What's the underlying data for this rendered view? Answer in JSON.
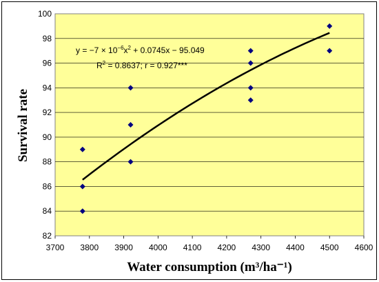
{
  "colors": {
    "plot_background": "#FFFF99",
    "marker": "#000080",
    "trendline": "#000000",
    "gridline": "#000000"
  },
  "chart_data": {
    "type": "scatter",
    "xlabel": "Water consumption (m³/ha⁻¹)",
    "ylabel": "Survival rate",
    "xlim": [
      3700,
      4600
    ],
    "ylim": [
      82,
      100
    ],
    "x_ticks": [
      "3700",
      "3800",
      "3900",
      "4000",
      "4100",
      "4200",
      "4300",
      "4400",
      "4500",
      "4600"
    ],
    "y_ticks": [
      "82",
      "84",
      "86",
      "88",
      "90",
      "92",
      "94",
      "96",
      "98",
      "100"
    ],
    "grid": "horizontal",
    "legend": "none",
    "marker": "diamond",
    "points": [
      {
        "x": 3780,
        "y": 84
      },
      {
        "x": 3780,
        "y": 86
      },
      {
        "x": 3780,
        "y": 89
      },
      {
        "x": 3920,
        "y": 88
      },
      {
        "x": 3920,
        "y": 91
      },
      {
        "x": 3920,
        "y": 94
      },
      {
        "x": 4270,
        "y": 93
      },
      {
        "x": 4270,
        "y": 94
      },
      {
        "x": 4270,
        "y": 96
      },
      {
        "x": 4270,
        "y": 97
      },
      {
        "x": 4500,
        "y": 97
      },
      {
        "x": 4500,
        "y": 99
      }
    ],
    "trendline": {
      "type": "polynomial",
      "coefficients": {
        "a": -7e-06,
        "b": 0.0745,
        "c": -95.049
      },
      "x_range": [
        3780,
        4500
      ]
    },
    "annotation": {
      "equation_prefix": "y = −7 × 10",
      "equation_exponent": "−6",
      "equation_mid": "x",
      "equation_power": "2",
      "equation_suffix": " + 0.0745x − 95.049",
      "r2_label": "R",
      "r2_power": "2",
      "r2_suffix": "  = 0.8637; r = 0.927***"
    }
  }
}
